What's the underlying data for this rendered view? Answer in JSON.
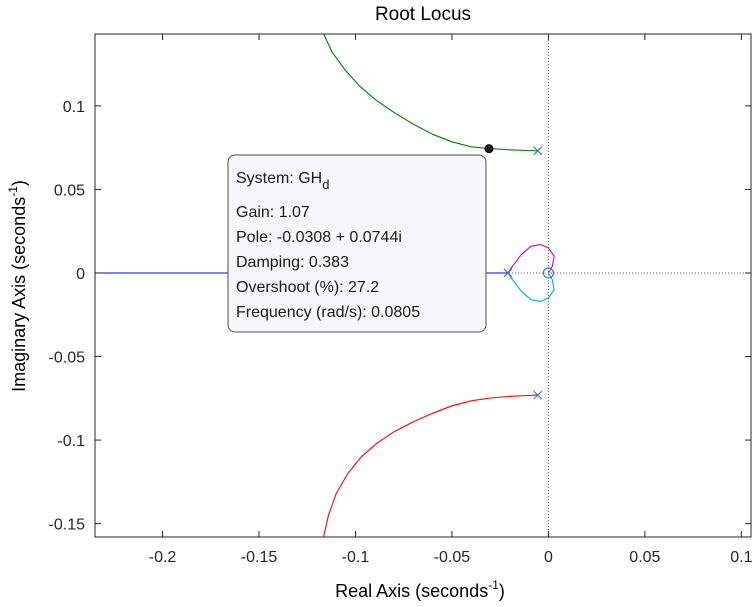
{
  "chart_data": {
    "type": "line",
    "title": "Root Locus",
    "xlabel_main": "Real Axis (seconds",
    "xlabel_sup": "-1",
    "xlabel_end": ")",
    "ylabel_main": "Imaginary Axis (seconds",
    "ylabel_sup": "-1",
    "ylabel_end": ")",
    "xlim": [
      -0.235,
      0.105
    ],
    "ylim": [
      -0.158,
      0.143
    ],
    "xticks": [
      -0.2,
      -0.15,
      -0.1,
      -0.05,
      0,
      0.05,
      0.1
    ],
    "xtick_labels": [
      "-0.2",
      "-0.15",
      "-0.1",
      "-0.05",
      "0",
      "0.05",
      "0.1"
    ],
    "yticks": [
      -0.15,
      -0.1,
      -0.05,
      0,
      0.05,
      0.1
    ],
    "ytick_labels": [
      "-0.15",
      "-0.1",
      "-0.05",
      "0",
      "0.05",
      "0.1"
    ],
    "grid": false,
    "series": [
      {
        "color": "#008000",
        "points": [
          [
            -0.1165,
            0.143
          ],
          [
            -0.112,
            0.132
          ],
          [
            -0.105,
            0.121
          ],
          [
            -0.098,
            0.112
          ],
          [
            -0.09,
            0.104
          ],
          [
            -0.08,
            0.096
          ],
          [
            -0.07,
            0.089
          ],
          [
            -0.06,
            0.083
          ],
          [
            -0.05,
            0.0785
          ],
          [
            -0.04,
            0.0755
          ],
          [
            -0.0308,
            0.0744
          ],
          [
            -0.02,
            0.0737
          ],
          [
            -0.011,
            0.0733
          ],
          [
            -0.0055,
            0.0731
          ]
        ]
      },
      {
        "color": "#ff0000",
        "points": [
          [
            -0.1165,
            -0.158
          ],
          [
            -0.114,
            -0.145
          ],
          [
            -0.11,
            -0.132
          ],
          [
            -0.104,
            -0.12
          ],
          [
            -0.097,
            -0.11
          ],
          [
            -0.089,
            -0.102
          ],
          [
            -0.08,
            -0.095
          ],
          [
            -0.07,
            -0.089
          ],
          [
            -0.06,
            -0.084
          ],
          [
            -0.05,
            -0.0795
          ],
          [
            -0.04,
            -0.0765
          ],
          [
            -0.03,
            -0.0748
          ],
          [
            -0.02,
            -0.0738
          ],
          [
            -0.011,
            -0.0733
          ],
          [
            -0.0055,
            -0.0731
          ]
        ]
      },
      {
        "color": "#0000ff",
        "points": [
          [
            -0.235,
            0
          ],
          [
            -0.021,
            0
          ]
        ]
      },
      {
        "color": "#cc00cc",
        "points": [
          [
            -0.021,
            0
          ],
          [
            -0.018,
            0.005
          ],
          [
            -0.014,
            0.011
          ],
          [
            -0.009,
            0.016
          ],
          [
            -0.004,
            0.017
          ],
          [
            0,
            0.015
          ],
          [
            0.003,
            0.01
          ],
          [
            0.002,
            0.004
          ],
          [
            0,
            0
          ]
        ]
      },
      {
        "color": "#00b3b3",
        "points": [
          [
            -0.021,
            0
          ],
          [
            -0.018,
            -0.005
          ],
          [
            -0.014,
            -0.011
          ],
          [
            -0.009,
            -0.016
          ],
          [
            -0.004,
            -0.017
          ],
          [
            0,
            -0.015
          ],
          [
            0.003,
            -0.01
          ],
          [
            0.002,
            -0.004
          ],
          [
            0,
            0
          ]
        ]
      }
    ],
    "poles": [
      [
        -0.0055,
        0.0731
      ],
      [
        -0.0055,
        -0.0731
      ],
      [
        -0.021,
        0
      ]
    ],
    "zeros": [
      [
        0,
        0
      ]
    ],
    "marker_color": "#3d78c8",
    "selected_point": [
      -0.0308,
      0.0744
    ],
    "datatip": {
      "system_label": "System: GH",
      "system_sub": "d",
      "lines": [
        "Gain: 1.07",
        "Pole: -0.0308 + 0.0744i",
        "Damping: 0.383",
        "Overshoot (%): 27.2",
        "Frequency (rad/s): 0.0805"
      ]
    }
  }
}
